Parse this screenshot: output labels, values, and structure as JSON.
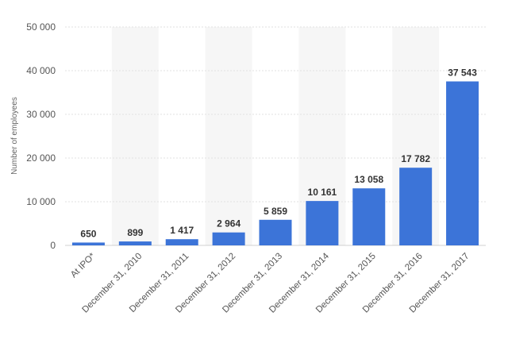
{
  "chart_data": {
    "type": "bar",
    "categories": [
      "At IPO*",
      "December 31, 2010",
      "December 31, 2011",
      "December 31, 2012",
      "December 31, 2013",
      "December 31, 2014",
      "December 31, 2015",
      "December 31, 2016",
      "December 31, 2017"
    ],
    "values": [
      650,
      899,
      1417,
      2964,
      5859,
      10161,
      13058,
      17782,
      37543
    ],
    "value_labels": [
      "650",
      "899",
      "1 417",
      "2 964",
      "5 859",
      "10 161",
      "13 058",
      "17 782",
      "37 543"
    ],
    "ylabel": "Number of employees",
    "xlabel": "",
    "ylim": [
      0,
      50000
    ],
    "yticks": [
      0,
      10000,
      20000,
      30000,
      40000,
      50000
    ],
    "ytick_labels": [
      "0",
      "10 000",
      "20 000",
      "30 000",
      "40 000",
      "50 000"
    ],
    "grid": true,
    "bar_color": "#3c74d8",
    "band_color": "#f6f6f6",
    "grid_color": "#e2e2e2"
  }
}
